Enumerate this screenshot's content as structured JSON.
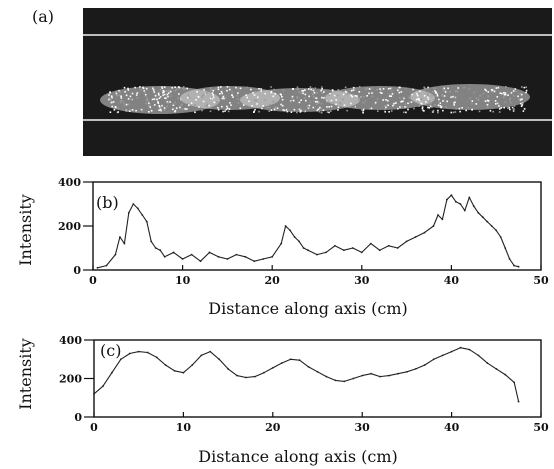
{
  "panel_a": {
    "label": "(a)"
  },
  "chart_data": [
    {
      "type": "line",
      "panel": "(b)",
      "xlabel": "Distance along axis (cm)",
      "ylabel": "Intensity",
      "xlim": [
        0,
        50
      ],
      "ylim": [
        0,
        400
      ],
      "xticks": [
        "0",
        "10",
        "20",
        "30",
        "40",
        "50"
      ],
      "yticks": [
        "0",
        "200",
        "400"
      ],
      "grid": false,
      "x": [
        0.5,
        1.5,
        2.5,
        3,
        3.5,
        4,
        4.5,
        5,
        5.5,
        6,
        6.5,
        7,
        7.5,
        8,
        9,
        10,
        11,
        12,
        13,
        14,
        15,
        16,
        17,
        18,
        19,
        20,
        21,
        21.5,
        22,
        22.5,
        23,
        23.5,
        24,
        25,
        26,
        27,
        28,
        29,
        30,
        31,
        32,
        33,
        34,
        35,
        36,
        37,
        38,
        38.5,
        39,
        39.5,
        40,
        40.5,
        41,
        41.5,
        42,
        42.5,
        43,
        43.5,
        44,
        44.5,
        45,
        45.5,
        46,
        46.5,
        47,
        47.5
      ],
      "values": [
        10,
        20,
        70,
        150,
        120,
        260,
        300,
        280,
        250,
        220,
        130,
        100,
        90,
        60,
        80,
        50,
        70,
        40,
        80,
        60,
        50,
        70,
        60,
        40,
        50,
        60,
        120,
        200,
        180,
        150,
        130,
        100,
        90,
        70,
        80,
        110,
        90,
        100,
        80,
        120,
        90,
        110,
        100,
        130,
        150,
        170,
        200,
        250,
        230,
        320,
        340,
        310,
        300,
        270,
        330,
        290,
        260,
        240,
        220,
        200,
        180,
        150,
        100,
        50,
        20,
        15
      ]
    },
    {
      "type": "line",
      "panel": "(c)",
      "xlabel": "Distance along axis (cm)",
      "ylabel": "Intensity",
      "xlim": [
        0,
        50
      ],
      "ylim": [
        0,
        400
      ],
      "xticks": [
        "0",
        "10",
        "20",
        "30",
        "40",
        "50"
      ],
      "yticks": [
        "0",
        "200",
        "400"
      ],
      "grid": false,
      "x": [
        0,
        1,
        2,
        3,
        4,
        5,
        6,
        7,
        8,
        9,
        10,
        11,
        12,
        13,
        14,
        15,
        16,
        17,
        18,
        19,
        20,
        21,
        22,
        23,
        24,
        25,
        26,
        27,
        28,
        29,
        30,
        31,
        32,
        33,
        34,
        35,
        36,
        37,
        38,
        39,
        40,
        41,
        42,
        43,
        44,
        45,
        46,
        47,
        47.5
      ],
      "values": [
        120,
        160,
        230,
        300,
        330,
        340,
        335,
        310,
        270,
        240,
        230,
        270,
        320,
        340,
        300,
        250,
        215,
        205,
        210,
        230,
        255,
        280,
        300,
        295,
        260,
        235,
        210,
        190,
        185,
        200,
        215,
        225,
        210,
        215,
        225,
        235,
        250,
        270,
        300,
        320,
        340,
        360,
        350,
        320,
        280,
        250,
        220,
        180,
        80
      ]
    }
  ]
}
